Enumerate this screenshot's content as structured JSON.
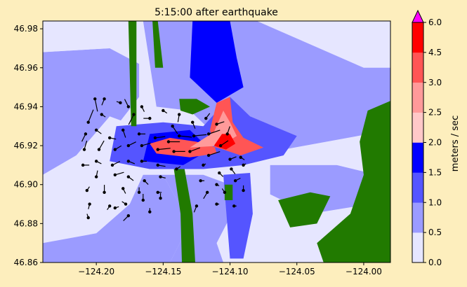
{
  "chart_data": {
    "type": "heatmap",
    "title": "5:15:00 after earthquake",
    "xlabel": "",
    "ylabel": "",
    "xlim": [
      -124.24,
      -123.98
    ],
    "ylim": [
      46.86,
      46.984
    ],
    "xticks": [
      -124.2,
      -124.15,
      -124.1,
      -124.05,
      -124.0
    ],
    "xtick_labels": [
      "−124.20",
      "−124.15",
      "−124.10",
      "−124.05",
      "−124.00"
    ],
    "yticks": [
      46.86,
      46.88,
      46.9,
      46.92,
      46.94,
      46.96,
      46.98
    ],
    "ytick_labels": [
      "46.86",
      "46.88",
      "46.90",
      "46.92",
      "46.94",
      "46.96",
      "46.98"
    ],
    "colorbar": {
      "label": "meters / sec",
      "bounds": [
        0.0,
        0.5,
        1.0,
        1.5,
        2.0,
        2.5,
        3.0,
        4.5,
        6.0
      ],
      "tick_labels": [
        "0.0",
        "0.5",
        "1.0",
        "1.5",
        "2.0",
        "2.5",
        "3.0",
        "4.5",
        "6.0"
      ],
      "colors": [
        "#e6e6ff",
        "#9b9bff",
        "#5555ff",
        "#0000ff",
        "#ffc8c8",
        "#ff9a9a",
        "#ff5555",
        "#ff0000"
      ],
      "extend_color": "#ff00ff"
    },
    "land_color": "#217a00",
    "zones": [
      {
        "level": 1,
        "points": [
          [
            -124.24,
            46.968
          ],
          [
            -124.19,
            46.97
          ],
          [
            -124.168,
            46.962
          ],
          [
            -124.168,
            46.945
          ],
          [
            -124.185,
            46.93
          ],
          [
            -124.215,
            46.915
          ],
          [
            -124.24,
            46.905
          ]
        ]
      },
      {
        "level": 0,
        "points": [
          [
            -124.24,
            46.984
          ],
          [
            -124.2,
            46.984
          ],
          [
            -124.19,
            46.97
          ],
          [
            -124.24,
            46.968
          ]
        ]
      },
      {
        "level": 0,
        "points": [
          [
            -124.24,
            46.905
          ],
          [
            -124.215,
            46.915
          ],
          [
            -124.19,
            46.935
          ],
          [
            -124.17,
            46.93
          ],
          [
            -124.165,
            46.905
          ],
          [
            -124.175,
            46.89
          ],
          [
            -124.2,
            46.875
          ],
          [
            -124.24,
            46.87
          ]
        ]
      },
      {
        "level": 1,
        "points": [
          [
            -124.24,
            46.87
          ],
          [
            -124.2,
            46.875
          ],
          [
            -124.175,
            46.89
          ],
          [
            -124.165,
            46.905
          ],
          [
            -124.15,
            46.905
          ],
          [
            -124.13,
            46.88
          ],
          [
            -124.145,
            46.86
          ],
          [
            -124.24,
            46.86
          ]
        ]
      },
      {
        "level": 1,
        "points": [
          [
            -124.165,
            46.984
          ],
          [
            -124.08,
            46.984
          ],
          [
            -124.05,
            46.975
          ],
          [
            -124.0,
            46.96
          ],
          [
            -123.98,
            46.96
          ],
          [
            -123.98,
            46.928
          ],
          [
            -124.06,
            46.918
          ],
          [
            -124.11,
            46.925
          ],
          [
            -124.13,
            46.938
          ],
          [
            -124.155,
            46.94
          ]
        ]
      },
      {
        "level": 3,
        "points": [
          [
            -124.128,
            46.984
          ],
          [
            -124.1,
            46.984
          ],
          [
            -124.095,
            46.965
          ],
          [
            -124.09,
            46.95
          ],
          [
            -124.11,
            46.942
          ],
          [
            -124.13,
            46.955
          ]
        ]
      },
      {
        "level": 2,
        "points": [
          [
            -124.185,
            46.93
          ],
          [
            -124.15,
            46.932
          ],
          [
            -124.12,
            46.93
          ],
          [
            -124.1,
            46.945
          ],
          [
            -124.085,
            46.935
          ],
          [
            -124.05,
            46.925
          ],
          [
            -124.06,
            46.915
          ],
          [
            -124.09,
            46.91
          ],
          [
            -124.12,
            46.908
          ],
          [
            -124.16,
            46.908
          ],
          [
            -124.19,
            46.912
          ]
        ]
      },
      {
        "level": 3,
        "points": [
          [
            -124.16,
            46.926
          ],
          [
            -124.13,
            46.928
          ],
          [
            -124.115,
            46.918
          ],
          [
            -124.135,
            46.91
          ],
          [
            -124.165,
            46.912
          ]
        ]
      },
      {
        "level": 1,
        "points": [
          [
            -124.15,
            46.905
          ],
          [
            -124.12,
            46.905
          ],
          [
            -124.1,
            46.9
          ],
          [
            -124.095,
            46.89
          ],
          [
            -124.11,
            46.87
          ],
          [
            -124.105,
            46.86
          ],
          [
            -124.145,
            46.86
          ],
          [
            -124.13,
            46.88
          ]
        ]
      },
      {
        "level": 1,
        "points": [
          [
            -124.07,
            46.91
          ],
          [
            -124.02,
            46.91
          ],
          [
            -123.99,
            46.905
          ],
          [
            -123.995,
            46.89
          ],
          [
            -124.04,
            46.885
          ],
          [
            -124.07,
            46.895
          ]
        ]
      },
      {
        "level": 2,
        "points": [
          [
            -124.105,
            46.905
          ],
          [
            -124.085,
            46.906
          ],
          [
            -124.083,
            46.885
          ],
          [
            -124.09,
            46.862
          ],
          [
            -124.1,
            46.862
          ]
        ]
      },
      {
        "level": 6,
        "points": [
          [
            -124.11,
            46.942
          ],
          [
            -124.1,
            46.945
          ],
          [
            -124.098,
            46.932
          ],
          [
            -124.09,
            46.924
          ],
          [
            -124.075,
            46.919
          ],
          [
            -124.092,
            46.915
          ],
          [
            -124.105,
            46.918
          ],
          [
            -124.125,
            46.922
          ],
          [
            -124.145,
            46.924
          ],
          [
            -124.16,
            46.921
          ],
          [
            -124.155,
            46.916
          ],
          [
            -124.13,
            46.914
          ],
          [
            -124.11,
            46.916
          ],
          [
            -124.115,
            46.928
          ]
        ]
      },
      {
        "level": 5,
        "points": [
          [
            -124.105,
            46.938
          ],
          [
            -124.1,
            46.932
          ],
          [
            -124.095,
            46.925
          ],
          [
            -124.107,
            46.92
          ],
          [
            -124.13,
            46.919
          ],
          [
            -124.112,
            46.927
          ]
        ]
      },
      {
        "level": 7,
        "points": [
          [
            -124.106,
            46.926
          ],
          [
            -124.1,
            46.926
          ],
          [
            -124.096,
            46.921
          ],
          [
            -124.103,
            46.918
          ],
          [
            -124.112,
            46.92
          ]
        ]
      }
    ],
    "land": [
      {
        "points": [
          [
            -124.176,
            46.984
          ],
          [
            -124.17,
            46.984
          ],
          [
            -124.17,
            46.93
          ],
          [
            -124.174,
            46.93
          ]
        ]
      },
      {
        "points": [
          [
            -124.158,
            46.984
          ],
          [
            -124.154,
            46.984
          ],
          [
            -124.15,
            46.96
          ],
          [
            -124.156,
            46.96
          ]
        ]
      },
      {
        "points": [
          [
            -124.138,
            46.944
          ],
          [
            -124.125,
            46.944
          ],
          [
            -124.115,
            46.94
          ],
          [
            -124.128,
            46.936
          ],
          [
            -124.137,
            46.938
          ]
        ]
      },
      {
        "points": [
          [
            -124.142,
            46.908
          ],
          [
            -124.134,
            46.908
          ],
          [
            -124.128,
            46.885
          ],
          [
            -124.126,
            46.86
          ],
          [
            -124.136,
            46.86
          ],
          [
            -124.137,
            46.885
          ]
        ]
      },
      {
        "points": [
          [
            -123.997,
            46.938
          ],
          [
            -123.98,
            46.943
          ],
          [
            -123.98,
            46.86
          ],
          [
            -124.03,
            46.86
          ],
          [
            -124.035,
            46.87
          ],
          [
            -124.01,
            46.885
          ],
          [
            -124.0,
            46.905
          ],
          [
            -124.003,
            46.922
          ]
        ]
      },
      {
        "points": [
          [
            -124.064,
            46.892
          ],
          [
            -124.04,
            46.896
          ],
          [
            -124.025,
            46.894
          ],
          [
            -124.035,
            46.88
          ],
          [
            -124.055,
            46.878
          ]
        ]
      },
      {
        "points": [
          [
            -124.104,
            46.9
          ],
          [
            -124.098,
            46.9
          ],
          [
            -124.098,
            46.892
          ],
          [
            -124.104,
            46.892
          ]
        ]
      }
    ],
    "arrows": [
      {
        "x": -124.201,
        "y": 46.944,
        "u": 0.2,
        "v": -1.0
      },
      {
        "x": -124.206,
        "y": 46.932,
        "u": 0.4,
        "v": 1.0
      },
      {
        "x": -124.194,
        "y": 46.944,
        "u": -0.2,
        "v": -0.5
      },
      {
        "x": -124.182,
        "y": 46.942,
        "u": -0.3,
        "v": 0.1
      },
      {
        "x": -124.172,
        "y": 46.936,
        "u": -0.4,
        "v": -0.8
      },
      {
        "x": -124.16,
        "y": 46.934,
        "u": -0.5,
        "v": 0.0
      },
      {
        "x": -124.15,
        "y": 46.938,
        "u": 0.3,
        "v": -0.2
      },
      {
        "x": -124.143,
        "y": 46.93,
        "u": 0.4,
        "v": -0.6
      },
      {
        "x": -124.128,
        "y": 46.932,
        "u": 0.2,
        "v": -0.5
      },
      {
        "x": -124.118,
        "y": 46.934,
        "u": 0.3,
        "v": 0.4
      },
      {
        "x": -124.11,
        "y": 46.931,
        "u": 0.6,
        "v": 0.2
      },
      {
        "x": -124.102,
        "y": 46.926,
        "u": 0.2,
        "v": 0.6
      },
      {
        "x": -124.208,
        "y": 46.926,
        "u": -0.3,
        "v": -0.6
      },
      {
        "x": -124.2,
        "y": 46.928,
        "u": 0.4,
        "v": -0.3
      },
      {
        "x": -124.19,
        "y": 46.924,
        "u": 0.5,
        "v": -0.1
      },
      {
        "x": -124.18,
        "y": 46.928,
        "u": 0.2,
        "v": -0.6
      },
      {
        "x": -124.168,
        "y": 46.926,
        "u": 0.5,
        "v": 0.0
      },
      {
        "x": -124.156,
        "y": 46.924,
        "u": 0.8,
        "v": 0.1
      },
      {
        "x": -124.146,
        "y": 46.922,
        "u": 0.9,
        "v": 0.0
      },
      {
        "x": -124.138,
        "y": 46.925,
        "u": 1.0,
        "v": -0.1
      },
      {
        "x": -124.127,
        "y": 46.925,
        "u": 1.0,
        "v": 0.1
      },
      {
        "x": -124.116,
        "y": 46.926,
        "u": 0.9,
        "v": 0.3
      },
      {
        "x": -124.107,
        "y": 46.92,
        "u": 0.6,
        "v": 0.4
      },
      {
        "x": -124.209,
        "y": 46.918,
        "u": 0.2,
        "v": 0.7
      },
      {
        "x": -124.198,
        "y": 46.918,
        "u": 0.4,
        "v": 0.7
      },
      {
        "x": -124.186,
        "y": 46.918,
        "u": 0.5,
        "v": 0.3
      },
      {
        "x": -124.176,
        "y": 46.92,
        "u": 0.6,
        "v": 0.3
      },
      {
        "x": -124.166,
        "y": 46.92,
        "u": 0.7,
        "v": 0.2
      },
      {
        "x": -124.154,
        "y": 46.918,
        "u": 1.0,
        "v": 0.1
      },
      {
        "x": -124.142,
        "y": 46.917,
        "u": 0.9,
        "v": 0.0
      },
      {
        "x": -124.13,
        "y": 46.917,
        "u": 0.8,
        "v": 0.3
      },
      {
        "x": -124.116,
        "y": 46.915,
        "u": 0.9,
        "v": 0.3
      },
      {
        "x": -124.1,
        "y": 46.913,
        "u": 0.5,
        "v": 0.2
      },
      {
        "x": -124.092,
        "y": 46.914,
        "u": 0.3,
        "v": -0.2
      },
      {
        "x": -124.21,
        "y": 46.91,
        "u": 0.5,
        "v": 0.0
      },
      {
        "x": -124.2,
        "y": 46.912,
        "u": 0.4,
        "v": -0.2
      },
      {
        "x": -124.188,
        "y": 46.91,
        "u": 0.6,
        "v": 0.3
      },
      {
        "x": -124.176,
        "y": 46.912,
        "u": 0.5,
        "v": -0.2
      },
      {
        "x": -124.166,
        "y": 46.912,
        "u": 0.4,
        "v": 0.0
      },
      {
        "x": -124.154,
        "y": 46.91,
        "u": 0.6,
        "v": -0.1
      },
      {
        "x": -124.14,
        "y": 46.908,
        "u": 0.3,
        "v": 0.2
      },
      {
        "x": -124.12,
        "y": 46.91,
        "u": 0.2,
        "v": 0.1
      },
      {
        "x": -124.108,
        "y": 46.906,
        "u": 0.3,
        "v": -0.3
      },
      {
        "x": -124.099,
        "y": 46.908,
        "u": 0.3,
        "v": -0.4
      },
      {
        "x": -124.09,
        "y": 46.91,
        "u": 0.2,
        "v": 0.1
      },
      {
        "x": -124.2,
        "y": 46.904,
        "u": 0.1,
        "v": 0.5
      },
      {
        "x": -124.186,
        "y": 46.905,
        "u": 0.7,
        "v": 0.2
      },
      {
        "x": -124.176,
        "y": 46.904,
        "u": 0.4,
        "v": -0.3
      },
      {
        "x": -124.164,
        "y": 46.902,
        "u": 0.3,
        "v": -0.3
      },
      {
        "x": -124.152,
        "y": 46.904,
        "u": 0.4,
        "v": -0.1
      },
      {
        "x": -124.122,
        "y": 46.902,
        "u": 0.3,
        "v": 0.0
      },
      {
        "x": -124.11,
        "y": 46.9,
        "u": 0.2,
        "v": -0.1
      },
      {
        "x": -124.096,
        "y": 46.902,
        "u": 0.4,
        "v": 0.2
      },
      {
        "x": -124.207,
        "y": 46.897,
        "u": 0.2,
        "v": 0.3
      },
      {
        "x": -124.194,
        "y": 46.896,
        "u": 0.0,
        "v": 0.6
      },
      {
        "x": -124.18,
        "y": 46.898,
        "u": 0.2,
        "v": -0.4
      },
      {
        "x": -124.168,
        "y": 46.896,
        "u": 0.0,
        "v": 0.4
      },
      {
        "x": -124.154,
        "y": 46.896,
        "u": 0.3,
        "v": 0.0
      },
      {
        "x": -124.117,
        "y": 46.896,
        "u": -0.3,
        "v": -0.5
      },
      {
        "x": -124.104,
        "y": 46.896,
        "u": -0.2,
        "v": 0.3
      },
      {
        "x": -124.09,
        "y": 46.897,
        "u": 0.0,
        "v": 0.4
      },
      {
        "x": -124.205,
        "y": 46.89,
        "u": -0.1,
        "v": -0.4
      },
      {
        "x": -124.19,
        "y": 46.889,
        "u": -0.2,
        "v": -0.3
      },
      {
        "x": -124.178,
        "y": 46.89,
        "u": -0.3,
        "v": 0.2
      },
      {
        "x": -124.165,
        "y": 46.892,
        "u": 0.0,
        "v": 0.5
      },
      {
        "x": -124.152,
        "y": 46.893,
        "u": 0.0,
        "v": 0.4
      },
      {
        "x": -124.125,
        "y": 46.889,
        "u": -0.2,
        "v": -0.5
      },
      {
        "x": -124.11,
        "y": 46.89,
        "u": 0.2,
        "v": 0.0
      },
      {
        "x": -124.097,
        "y": 46.889,
        "u": 0.2,
        "v": 0.0
      },
      {
        "x": -124.206,
        "y": 46.883,
        "u": -0.1,
        "v": 0.3
      },
      {
        "x": -124.186,
        "y": 46.888,
        "u": 0.3,
        "v": 0.1
      },
      {
        "x": -124.176,
        "y": 46.884,
        "u": -0.4,
        "v": -0.4
      },
      {
        "x": -124.16,
        "y": 46.886,
        "u": 0.0,
        "v": 0.3
      },
      {
        "x": -124.176,
        "y": 46.94,
        "u": -0.3,
        "v": 0.6
      },
      {
        "x": -124.166,
        "y": 46.94,
        "u": 0.2,
        "v": -0.4
      },
      {
        "x": -124.138,
        "y": 46.936,
        "u": -0.1,
        "v": -0.6
      },
      {
        "x": -124.196,
        "y": 46.936,
        "u": 0.3,
        "v": -0.2
      }
    ]
  }
}
